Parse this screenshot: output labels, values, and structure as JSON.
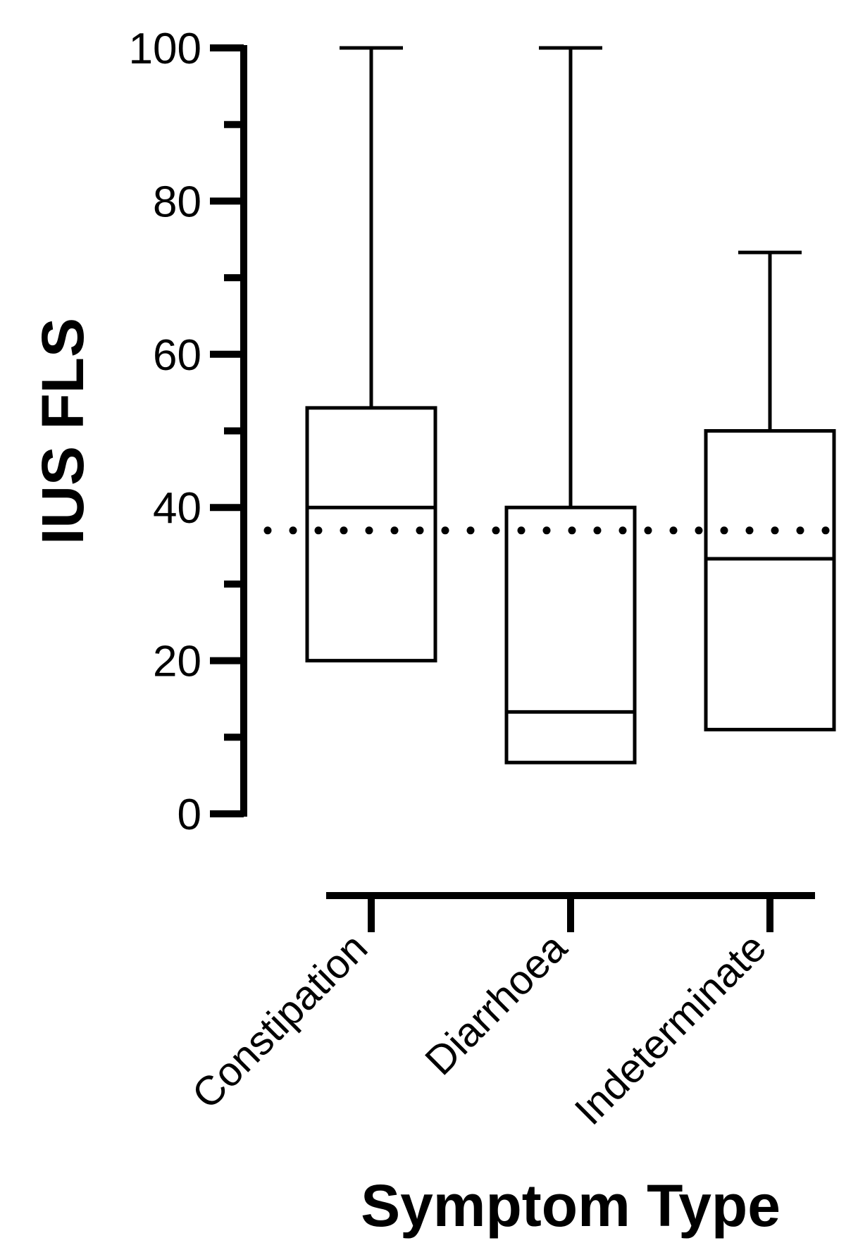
{
  "chart_data": {
    "type": "box",
    "xlabel": "Symptom Type",
    "ylabel": "IUS FLS",
    "ylim": [
      0,
      100
    ],
    "y_major_ticks": [
      0,
      20,
      40,
      60,
      80,
      100
    ],
    "y_minor_ticks": [
      10,
      30,
      50,
      70,
      90
    ],
    "y_tick_labels": [
      "0",
      "20",
      "40",
      "60",
      "80",
      "100"
    ],
    "categories": [
      "Constipation",
      "Diarrhoea",
      "Indeterminate"
    ],
    "boxes": [
      {
        "category": "Constipation",
        "min": 20,
        "q1": 20,
        "median": 40,
        "q3": 53,
        "max": 100
      },
      {
        "category": "Diarrhoea",
        "min": 6.7,
        "q1": 6.7,
        "median": 13.3,
        "q3": 40,
        "max": 100
      },
      {
        "category": "Indeterminate",
        "min": 11,
        "q1": 11,
        "median": 33.3,
        "q3": 50,
        "max": 73.3
      }
    ],
    "reference_line": {
      "y": 37,
      "style": "dotted"
    },
    "grid": false,
    "legend": "none"
  }
}
